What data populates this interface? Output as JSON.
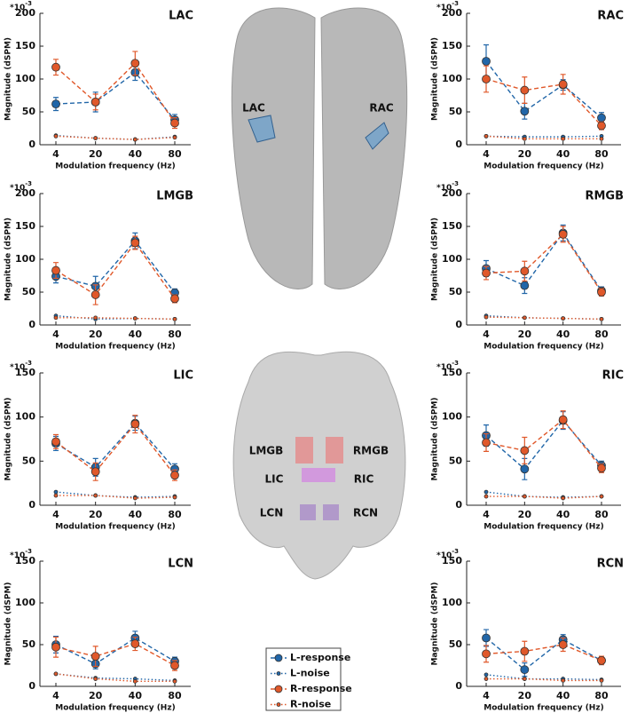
{
  "legend": {
    "entries": [
      {
        "name": "L-response",
        "color": "#2166a8",
        "dash": "dashed",
        "marker": "large"
      },
      {
        "name": "L-noise",
        "color": "#2166a8",
        "dash": "dotted",
        "marker": "small"
      },
      {
        "name": "R-response",
        "color": "#e0582a",
        "dash": "dashed",
        "marker": "large"
      },
      {
        "name": "R-noise",
        "color": "#e0582a",
        "dash": "dotted",
        "marker": "small"
      }
    ]
  },
  "brain_labels": {
    "top": [
      "LAC",
      "RAC"
    ],
    "bottom": [
      "LMGB",
      "RMGB",
      "LIC",
      "RIC",
      "LCN",
      "RCN"
    ]
  },
  "chart_data": [
    {
      "type": "line",
      "title": "LAC",
      "xlabel": "Modulation frequency (Hz)",
      "ylabel": "Magnitude (dSPM)",
      "scale_base": "*10",
      "scale_exponent": "-3",
      "categories": [
        "4",
        "20",
        "40",
        "80"
      ],
      "ylim": [
        0,
        200
      ],
      "yticks": [
        0,
        50,
        100,
        150,
        200
      ],
      "series": [
        {
          "values": [
            62,
            65,
            110,
            38
          ],
          "errors": [
            10,
            15,
            12,
            8
          ]
        },
        {
          "values": [
            14,
            10,
            8,
            12
          ]
        },
        {
          "values": [
            118,
            65,
            124,
            33
          ],
          "errors": [
            12,
            12,
            18,
            8
          ]
        },
        {
          "values": [
            13,
            10,
            8,
            11
          ]
        }
      ]
    },
    {
      "type": "line",
      "title": "RAC",
      "xlabel": "Modulation frequency (Hz)",
      "ylabel": "Magnitude (dSPM)",
      "scale_base": "*10",
      "scale_exponent": "-3",
      "categories": [
        "4",
        "20",
        "40",
        "80"
      ],
      "ylim": [
        0,
        200
      ],
      "yticks": [
        0,
        50,
        100,
        150,
        200
      ],
      "series": [
        {
          "values": [
            127,
            51,
            91,
            41
          ],
          "errors": [
            25,
            12,
            8,
            8
          ]
        },
        {
          "values": [
            13,
            12,
            12,
            13
          ]
        },
        {
          "values": [
            100,
            83,
            92,
            29
          ],
          "errors": [
            20,
            20,
            15,
            6
          ]
        },
        {
          "values": [
            13,
            9,
            9,
            9
          ]
        }
      ]
    },
    {
      "type": "line",
      "title": "LMGB",
      "xlabel": "Modulation frequency (Hz)",
      "ylabel": "Magnitude (dSPM)",
      "scale_base": "*10",
      "scale_exponent": "-3",
      "categories": [
        "4",
        "20",
        "40",
        "80"
      ],
      "ylim": [
        0,
        200
      ],
      "yticks": [
        0,
        50,
        100,
        150,
        200
      ],
      "series": [
        {
          "values": [
            74,
            59,
            128,
            49
          ],
          "errors": [
            10,
            15,
            12,
            6
          ]
        },
        {
          "values": [
            14,
            9,
            10,
            9
          ]
        },
        {
          "values": [
            83,
            46,
            125,
            40
          ],
          "errors": [
            12,
            15,
            10,
            6
          ]
        },
        {
          "values": [
            11,
            11,
            10,
            9
          ]
        }
      ]
    },
    {
      "type": "line",
      "title": "RMGB",
      "xlabel": "Modulation frequency (Hz)",
      "ylabel": "Magnitude (dSPM)",
      "scale_base": "*10",
      "scale_exponent": "-3",
      "categories": [
        "4",
        "20",
        "40",
        "80"
      ],
      "ylim": [
        0,
        200
      ],
      "yticks": [
        0,
        50,
        100,
        150,
        200
      ],
      "series": [
        {
          "values": [
            86,
            60,
            140,
            52
          ],
          "errors": [
            12,
            12,
            12,
            6
          ]
        },
        {
          "values": [
            14,
            11,
            10,
            9
          ]
        },
        {
          "values": [
            79,
            82,
            138,
            50
          ],
          "errors": [
            10,
            15,
            12,
            6
          ]
        },
        {
          "values": [
            12,
            11,
            10,
            9
          ]
        }
      ]
    },
    {
      "type": "line",
      "title": "LIC",
      "xlabel": "Modulation frequency (Hz)",
      "ylabel": "Magnitude (dSPM)",
      "scale_base": "*10",
      "scale_exponent": "-3",
      "categories": [
        "4",
        "20",
        "40",
        "80"
      ],
      "ylim": [
        0,
        150
      ],
      "yticks": [
        0,
        50,
        100,
        150
      ],
      "series": [
        {
          "values": [
            70,
            43,
            93,
            41
          ],
          "errors": [
            8,
            10,
            8,
            6
          ]
        },
        {
          "values": [
            15,
            11,
            9,
            10
          ]
        },
        {
          "values": [
            72,
            38,
            92,
            34
          ],
          "errors": [
            8,
            10,
            10,
            6
          ]
        },
        {
          "values": [
            11,
            11,
            8,
            9
          ]
        }
      ]
    },
    {
      "type": "line",
      "title": "RIC",
      "xlabel": "Modulation frequency (Hz)",
      "ylabel": "Magnitude (dSPM)",
      "scale_base": "*10",
      "scale_exponent": "-3",
      "categories": [
        "4",
        "20",
        "40",
        "80"
      ],
      "ylim": [
        0,
        150
      ],
      "yticks": [
        0,
        50,
        100,
        150
      ],
      "series": [
        {
          "values": [
            79,
            41,
            96,
            45
          ],
          "errors": [
            12,
            12,
            10,
            5
          ]
        },
        {
          "values": [
            15,
            10,
            9,
            10
          ]
        },
        {
          "values": [
            71,
            62,
            97,
            42
          ],
          "errors": [
            10,
            15,
            10,
            5
          ]
        },
        {
          "values": [
            10,
            10,
            8,
            10
          ]
        }
      ]
    },
    {
      "type": "line",
      "title": "LCN",
      "xlabel": "Modulation frequency (Hz)",
      "ylabel": "Magnitude (dSPM)",
      "scale_base": "*10",
      "scale_exponent": "-3",
      "categories": [
        "4",
        "20",
        "40",
        "80"
      ],
      "ylim": [
        0,
        150
      ],
      "yticks": [
        0,
        50,
        100,
        150
      ],
      "series": [
        {
          "values": [
            50,
            27,
            58,
            30
          ],
          "errors": [
            10,
            6,
            8,
            5
          ]
        },
        {
          "values": [
            15,
            10,
            9,
            7
          ]
        },
        {
          "values": [
            47,
            36,
            51,
            25
          ],
          "errors": [
            12,
            12,
            8,
            6
          ]
        },
        {
          "values": [
            15,
            9,
            6,
            6
          ]
        }
      ]
    },
    {
      "type": "line",
      "title": "RCN",
      "xlabel": "Modulation frequency (Hz)",
      "ylabel": "Magnitude (dSPM)",
      "scale_base": "*10",
      "scale_exponent": "-3",
      "categories": [
        "4",
        "20",
        "40",
        "80"
      ],
      "ylim": [
        0,
        150
      ],
      "yticks": [
        0,
        50,
        100,
        150
      ],
      "series": [
        {
          "values": [
            58,
            20,
            56,
            31
          ],
          "errors": [
            10,
            8,
            6,
            5
          ]
        },
        {
          "values": [
            14,
            9,
            9,
            8
          ]
        },
        {
          "values": [
            39,
            42,
            50,
            31
          ],
          "errors": [
            10,
            12,
            8,
            5
          ]
        },
        {
          "values": [
            9,
            9,
            7,
            7
          ]
        }
      ]
    }
  ]
}
